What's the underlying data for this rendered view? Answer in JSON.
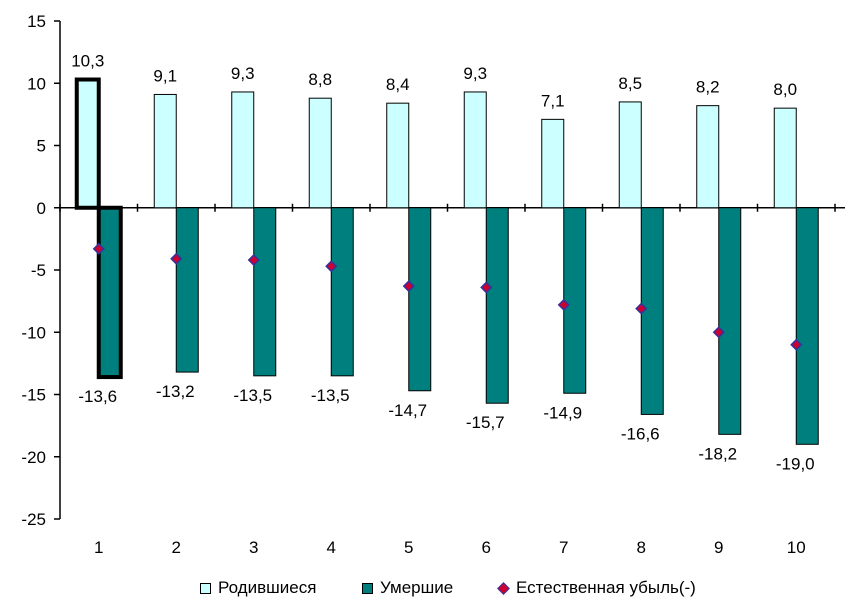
{
  "chart_data": {
    "type": "bar",
    "categories": [
      "1",
      "2",
      "3",
      "4",
      "5",
      "6",
      "7",
      "8",
      "9",
      "10"
    ],
    "series": [
      {
        "name": "Родившиеся",
        "kind": "bar",
        "color": "#ccffff",
        "values": [
          10.3,
          9.1,
          9.3,
          8.8,
          8.4,
          9.3,
          7.1,
          8.5,
          8.2,
          8.0
        ],
        "labels": [
          "10,3",
          "9,1",
          "9,3",
          "8,8",
          "8,4",
          "9,3",
          "7,1",
          "8,5",
          "8,2",
          "8,0"
        ]
      },
      {
        "name": "Умершие",
        "kind": "bar",
        "color": "#007f7f",
        "values": [
          -13.6,
          -13.2,
          -13.5,
          -13.5,
          -14.7,
          -15.7,
          -14.9,
          -16.6,
          -18.2,
          -19.0
        ],
        "labels": [
          "-13,6",
          "-13,2",
          "-13,5",
          "-13,5",
          "-14,7",
          "-15,7",
          "-14,9",
          "-16,6",
          "-18,2",
          "-19,0"
        ]
      },
      {
        "name": "Естественная убыль(-)",
        "kind": "marker",
        "color": "#cc0033",
        "edge_color": "#333399",
        "values": [
          -3.3,
          -4.1,
          -4.2,
          -4.7,
          -6.3,
          -6.4,
          -7.8,
          -8.1,
          -10.0,
          -11.0
        ]
      }
    ],
    "ylim": [
      -25,
      15
    ],
    "yticks": [
      15,
      10,
      5,
      0,
      -5,
      -10,
      -15,
      -20,
      -25
    ],
    "legend_position": "bottom",
    "highlighted_category": "1"
  }
}
